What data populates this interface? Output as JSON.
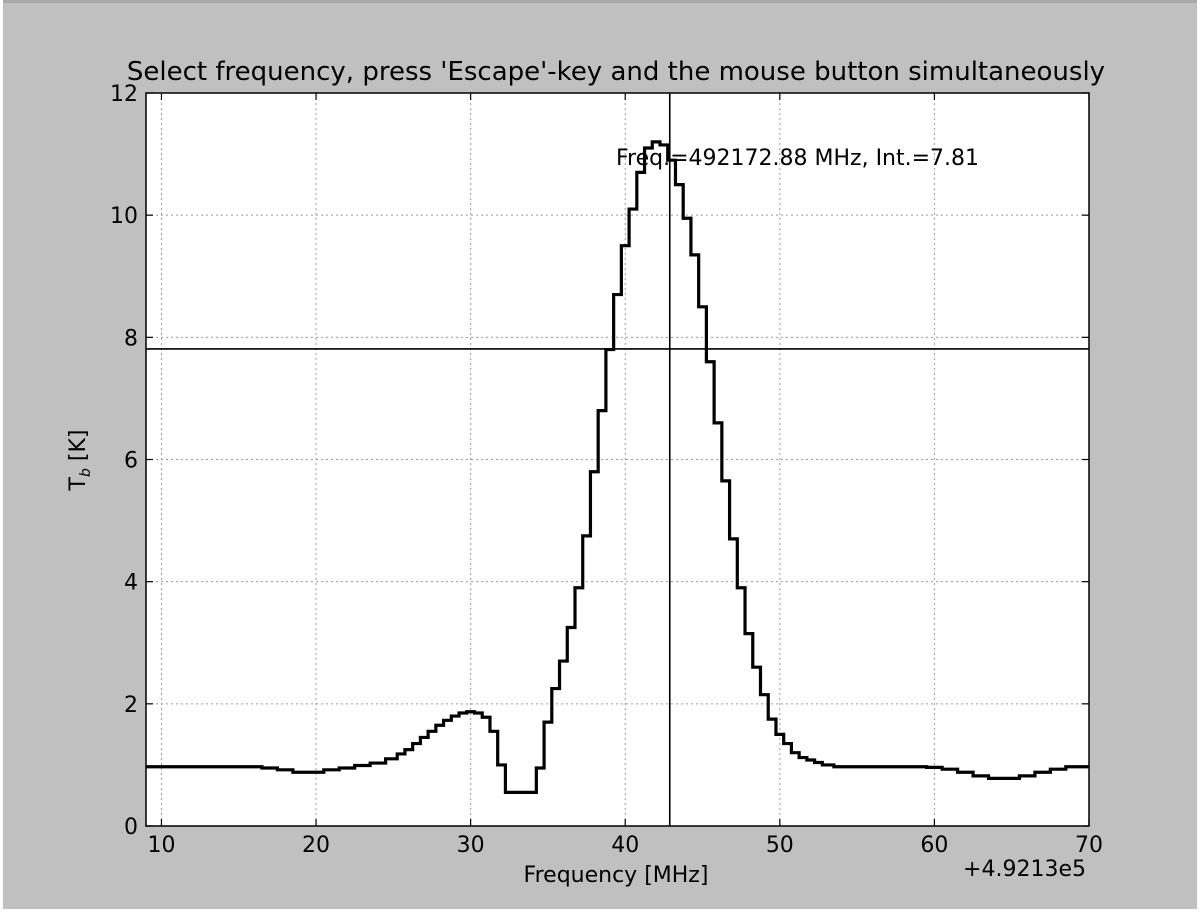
{
  "colors": {
    "window_bg": "#c0c0c0",
    "plot_bg": "#ffffff",
    "line": "#000000",
    "grid": "#9a9a9a"
  },
  "chart_data": {
    "type": "line",
    "title": "Select frequency, press 'Escape'-key and the mouse button simultaneously",
    "xlabel": "Frequency [MHz]",
    "ylabel": "T",
    "ylabel_subscript": "b",
    "ylabel_unit": " [K]",
    "x_offset_label": "+4.9213e5",
    "xlim": [
      9,
      70
    ],
    "ylim": [
      0,
      12
    ],
    "x_ticks": [
      10,
      20,
      30,
      40,
      50,
      60,
      70
    ],
    "y_ticks": [
      0,
      2,
      4,
      6,
      8,
      10,
      12
    ],
    "grid": true,
    "drawstyle": "steps-mid",
    "series": [
      {
        "x": [
          9.0,
          10.0,
          11.0,
          12.0,
          13.0,
          14.0,
          15.0,
          16.0,
          17.0,
          18.0,
          19.0,
          20.0,
          21.0,
          22.0,
          23.0,
          24.0,
          25.0,
          25.5,
          26.0,
          26.5,
          27.0,
          27.5,
          28.0,
          28.5,
          29.0,
          29.5,
          30.0,
          30.5,
          31.0,
          31.5,
          32.0,
          32.5,
          33.0,
          33.5,
          34.0,
          34.5,
          35.0,
          35.5,
          36.0,
          36.5,
          37.0,
          37.5,
          38.0,
          38.5,
          39.0,
          39.5,
          40.0,
          40.5,
          41.0,
          41.5,
          42.0,
          42.5,
          43.0,
          43.5,
          44.0,
          44.5,
          45.0,
          45.5,
          46.0,
          46.5,
          47.0,
          47.5,
          48.0,
          48.5,
          49.0,
          49.5,
          50.0,
          50.5,
          51.0,
          51.5,
          52.0,
          52.5,
          53.0,
          54.0,
          55.0,
          56.0,
          57.0,
          58.0,
          59.0,
          60.0,
          61.0,
          62.0,
          63.0,
          64.0,
          65.0,
          66.0,
          67.0,
          68.0,
          69.0,
          70.0
        ],
        "y": [
          0.97,
          0.97,
          0.97,
          0.97,
          0.97,
          0.97,
          0.97,
          0.97,
          0.95,
          0.92,
          0.88,
          0.88,
          0.92,
          0.95,
          0.99,
          1.03,
          1.1,
          1.18,
          1.25,
          1.35,
          1.45,
          1.55,
          1.65,
          1.73,
          1.8,
          1.85,
          1.87,
          1.85,
          1.78,
          1.55,
          1.0,
          0.55,
          0.55,
          0.55,
          0.55,
          0.95,
          1.7,
          2.25,
          2.7,
          3.25,
          3.9,
          4.75,
          5.8,
          6.8,
          7.8,
          8.7,
          9.5,
          10.1,
          10.7,
          11.1,
          11.2,
          11.15,
          10.9,
          10.5,
          9.95,
          9.35,
          8.5,
          7.6,
          6.6,
          5.65,
          4.7,
          3.9,
          3.15,
          2.6,
          2.15,
          1.75,
          1.5,
          1.35,
          1.2,
          1.12,
          1.08,
          1.04,
          1.0,
          0.97,
          0.97,
          0.97,
          0.97,
          0.97,
          0.97,
          0.96,
          0.93,
          0.88,
          0.82,
          0.78,
          0.78,
          0.82,
          0.88,
          0.93,
          0.97,
          0.97
        ]
      }
    ],
    "cursor": {
      "x": 42.88,
      "y": 7.81
    },
    "annotation": "Freq.=492172.88 MHz, Int.=7.81"
  }
}
